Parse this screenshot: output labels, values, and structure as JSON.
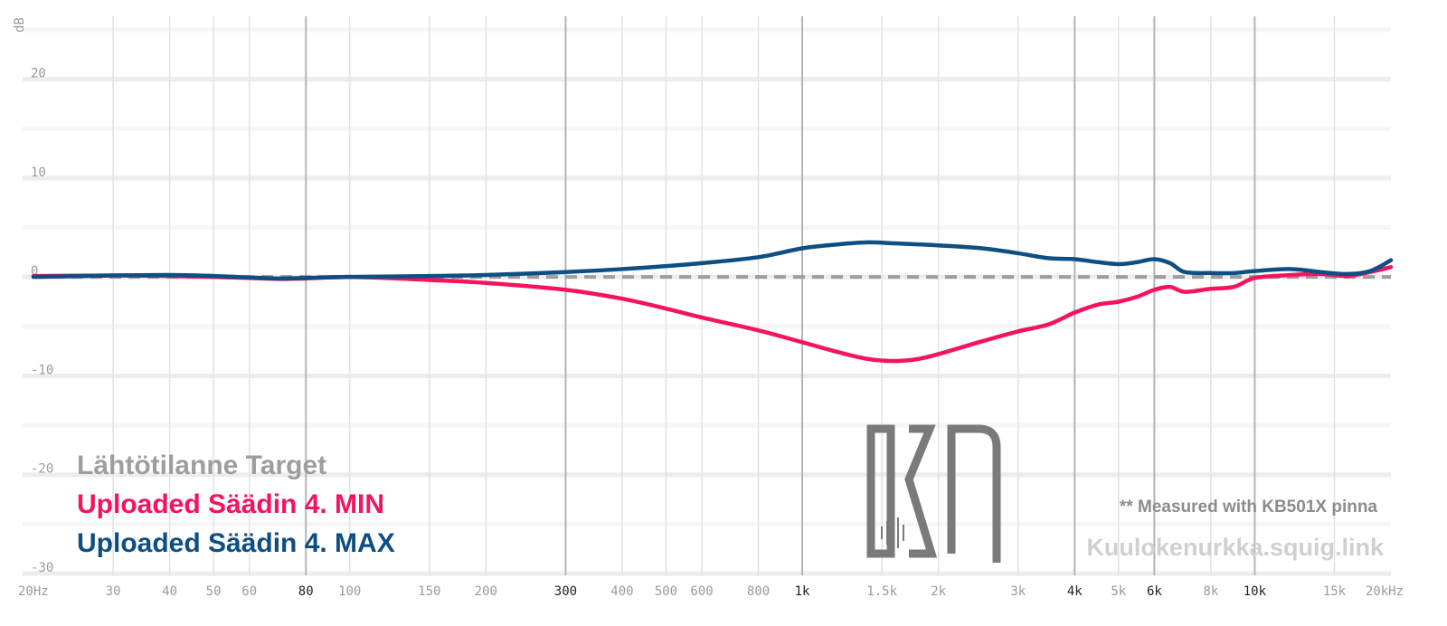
{
  "chart_data": {
    "type": "line",
    "ylabel": "dB",
    "ylim": [
      -30,
      25
    ],
    "xlim": [
      20,
      20000
    ],
    "x_scale": "log",
    "grid": true,
    "legend_position": "bottom-left",
    "y_ticks": [
      {
        "value": 20,
        "label": "20"
      },
      {
        "value": 10,
        "label": "10"
      },
      {
        "value": 0,
        "label": "0"
      },
      {
        "value": -10,
        "label": "-10"
      },
      {
        "value": -20,
        "label": "-20"
      },
      {
        "value": -30,
        "label": "-30"
      }
    ],
    "x_ticks": [
      {
        "value": 20,
        "label": "20Hz",
        "major": false
      },
      {
        "value": 30,
        "label": "30",
        "major": false
      },
      {
        "value": 40,
        "label": "40",
        "major": false
      },
      {
        "value": 50,
        "label": "50",
        "major": false
      },
      {
        "value": 60,
        "label": "60",
        "major": false
      },
      {
        "value": 80,
        "label": "80",
        "major": true
      },
      {
        "value": 100,
        "label": "100",
        "major": false
      },
      {
        "value": 150,
        "label": "150",
        "major": false
      },
      {
        "value": 200,
        "label": "200",
        "major": false
      },
      {
        "value": 300,
        "label": "300",
        "major": true
      },
      {
        "value": 400,
        "label": "400",
        "major": false
      },
      {
        "value": 500,
        "label": "500",
        "major": false
      },
      {
        "value": 600,
        "label": "600",
        "major": false
      },
      {
        "value": 800,
        "label": "800",
        "major": false
      },
      {
        "value": 1000,
        "label": "1k",
        "major": true
      },
      {
        "value": 1500,
        "label": "1.5k",
        "major": false
      },
      {
        "value": 2000,
        "label": "2k",
        "major": false
      },
      {
        "value": 3000,
        "label": "3k",
        "major": false
      },
      {
        "value": 4000,
        "label": "4k",
        "major": true
      },
      {
        "value": 5000,
        "label": "5k",
        "major": false
      },
      {
        "value": 6000,
        "label": "6k",
        "major": true
      },
      {
        "value": 8000,
        "label": "8k",
        "major": false
      },
      {
        "value": 10000,
        "label": "10k",
        "major": true
      },
      {
        "value": 15000,
        "label": "15k",
        "major": false
      },
      {
        "value": 20000,
        "label": "20kHz",
        "major": false
      }
    ],
    "series": [
      {
        "name": "Lähtötilanne Target",
        "color": "#9e9e9e",
        "style": "dashed",
        "x": [
          20,
          20000
        ],
        "y": [
          0,
          0
        ]
      },
      {
        "name": "Uploaded Säädin 4. MIN",
        "color": "#f5135f",
        "style": "solid",
        "x": [
          20,
          30,
          40,
          50,
          60,
          70,
          80,
          100,
          150,
          200,
          300,
          400,
          500,
          600,
          800,
          1000,
          1200,
          1400,
          1600,
          1800,
          2000,
          2500,
          3000,
          3500,
          4000,
          4500,
          5000,
          5500,
          6000,
          6500,
          7000,
          8000,
          9000,
          10000,
          12000,
          14000,
          16000,
          18000,
          20000
        ],
        "y": [
          0.1,
          0.15,
          0.1,
          0.0,
          -0.1,
          -0.2,
          -0.15,
          0.0,
          -0.3,
          -0.6,
          -1.3,
          -2.2,
          -3.2,
          -4.1,
          -5.4,
          -6.6,
          -7.6,
          -8.3,
          -8.5,
          -8.3,
          -7.8,
          -6.5,
          -5.5,
          -4.8,
          -3.6,
          -2.8,
          -2.5,
          -2.0,
          -1.3,
          -1.0,
          -1.5,
          -1.2,
          -1.0,
          -0.1,
          0.2,
          0.3,
          0.1,
          0.5,
          1.0
        ]
      },
      {
        "name": "Uploaded Säädin 4. MAX",
        "color": "#0d4f82",
        "style": "solid",
        "x": [
          20,
          30,
          40,
          50,
          60,
          70,
          80,
          100,
          150,
          200,
          300,
          400,
          500,
          600,
          800,
          1000,
          1200,
          1400,
          1600,
          1800,
          2000,
          2500,
          3000,
          3500,
          4000,
          4500,
          5000,
          5500,
          6000,
          6500,
          7000,
          8000,
          9000,
          10000,
          12000,
          14000,
          16000,
          18000,
          20000
        ],
        "y": [
          0.0,
          0.15,
          0.2,
          0.1,
          -0.05,
          -0.15,
          -0.1,
          0.0,
          0.1,
          0.2,
          0.5,
          0.8,
          1.1,
          1.4,
          2.0,
          2.9,
          3.3,
          3.5,
          3.4,
          3.3,
          3.2,
          2.9,
          2.4,
          1.9,
          1.8,
          1.5,
          1.3,
          1.5,
          1.8,
          1.4,
          0.5,
          0.4,
          0.4,
          0.6,
          0.8,
          0.5,
          0.3,
          0.6,
          1.7
        ]
      }
    ]
  },
  "overlay": {
    "note": "** Measured with KB501X pinna",
    "watermark": "Kuulokenurkka.squig.link"
  }
}
